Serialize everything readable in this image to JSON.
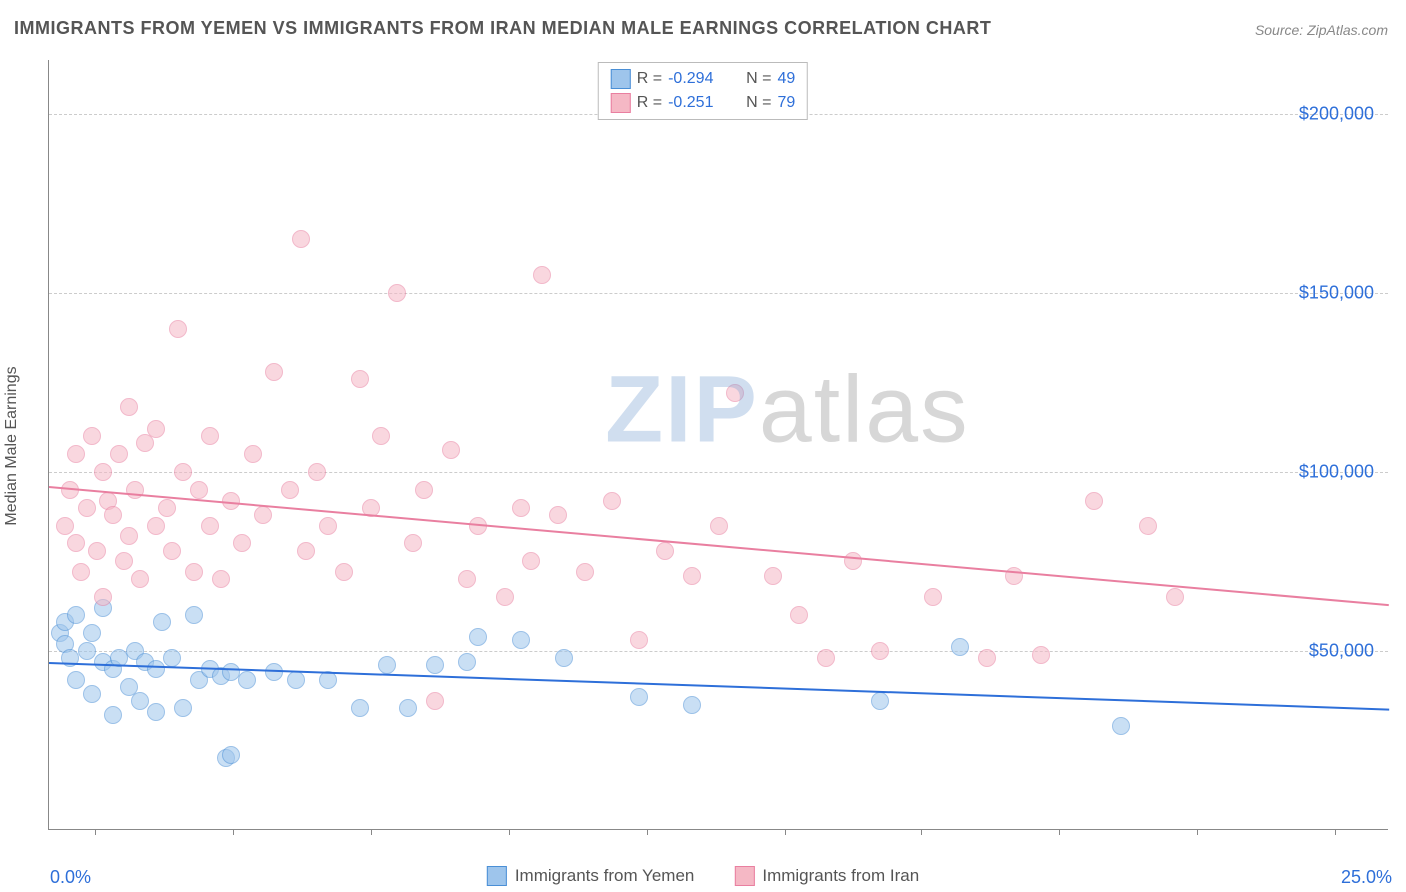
{
  "title": "IMMIGRANTS FROM YEMEN VS IMMIGRANTS FROM IRAN MEDIAN MALE EARNINGS CORRELATION CHART",
  "source": "Source: ZipAtlas.com",
  "ylabel": "Median Male Earnings",
  "watermark_zip": "ZIP",
  "watermark_atlas": "atlas",
  "chart": {
    "type": "scatter",
    "background_color": "#ffffff",
    "grid_color": "#cccccc",
    "axis_color": "#888888",
    "text_color": "#555555",
    "value_color": "#2e6fd9",
    "title_fontsize": 18,
    "label_fontsize": 16,
    "tick_fontsize": 18,
    "xlim": [
      0,
      25
    ],
    "ylim": [
      0,
      215000
    ],
    "xticks_pct": [
      3.4,
      13.7,
      24.0,
      34.3,
      44.6,
      54.9,
      65.1,
      75.4,
      85.7,
      96.0
    ],
    "y_gridlines": [
      50000,
      100000,
      150000,
      200000
    ],
    "ytick_labels": [
      "$50,000",
      "$100,000",
      "$150,000",
      "$200,000"
    ],
    "xaxis_min_label": "0.0%",
    "xaxis_max_label": "25.0%",
    "marker_radius": 9,
    "marker_opacity": 0.55,
    "series": [
      {
        "name": "Immigrants from Yemen",
        "marker_fill": "#9ec5ec",
        "marker_stroke": "#4a8fd6",
        "trend_color": "#2e6fd9",
        "trend_width": 2,
        "r": "-0.294",
        "n": "49",
        "trend": {
          "x1": 0,
          "y1": 47000,
          "x2": 25,
          "y2": 34000
        },
        "points": [
          [
            0.2,
            55000
          ],
          [
            0.3,
            52000
          ],
          [
            0.3,
            58000
          ],
          [
            0.4,
            48000
          ],
          [
            0.5,
            60000
          ],
          [
            0.5,
            42000
          ],
          [
            0.7,
            50000
          ],
          [
            0.8,
            55000
          ],
          [
            0.8,
            38000
          ],
          [
            1.0,
            62000
          ],
          [
            1.0,
            47000
          ],
          [
            1.2,
            45000
          ],
          [
            1.2,
            32000
          ],
          [
            1.3,
            48000
          ],
          [
            1.5,
            40000
          ],
          [
            1.6,
            50000
          ],
          [
            1.7,
            36000
          ],
          [
            1.8,
            47000
          ],
          [
            2.0,
            33000
          ],
          [
            2.0,
            45000
          ],
          [
            2.1,
            58000
          ],
          [
            2.3,
            48000
          ],
          [
            2.5,
            34000
          ],
          [
            2.7,
            60000
          ],
          [
            2.8,
            42000
          ],
          [
            3.0,
            45000
          ],
          [
            3.2,
            43000
          ],
          [
            3.3,
            20000
          ],
          [
            3.4,
            21000
          ],
          [
            3.4,
            44000
          ],
          [
            3.7,
            42000
          ],
          [
            4.2,
            44000
          ],
          [
            4.6,
            42000
          ],
          [
            5.2,
            42000
          ],
          [
            5.8,
            34000
          ],
          [
            6.3,
            46000
          ],
          [
            6.7,
            34000
          ],
          [
            7.2,
            46000
          ],
          [
            7.8,
            47000
          ],
          [
            8.0,
            54000
          ],
          [
            8.8,
            53000
          ],
          [
            9.6,
            48000
          ],
          [
            11.0,
            37000
          ],
          [
            12.0,
            35000
          ],
          [
            15.5,
            36000
          ],
          [
            17.0,
            51000
          ],
          [
            20.0,
            29000
          ]
        ]
      },
      {
        "name": "Immigrants from Iran",
        "marker_fill": "#f5b8c5",
        "marker_stroke": "#e97fa0",
        "trend_color": "#e97fa0",
        "trend_width": 2,
        "r": "-0.251",
        "n": "79",
        "trend": {
          "x1": 0,
          "y1": 96000,
          "x2": 25,
          "y2": 63000
        },
        "points": [
          [
            0.3,
            85000
          ],
          [
            0.4,
            95000
          ],
          [
            0.5,
            80000
          ],
          [
            0.5,
            105000
          ],
          [
            0.6,
            72000
          ],
          [
            0.7,
            90000
          ],
          [
            0.8,
            110000
          ],
          [
            0.9,
            78000
          ],
          [
            1.0,
            100000
          ],
          [
            1.0,
            65000
          ],
          [
            1.1,
            92000
          ],
          [
            1.2,
            88000
          ],
          [
            1.3,
            105000
          ],
          [
            1.4,
            75000
          ],
          [
            1.5,
            118000
          ],
          [
            1.5,
            82000
          ],
          [
            1.6,
            95000
          ],
          [
            1.7,
            70000
          ],
          [
            1.8,
            108000
          ],
          [
            2.0,
            85000
          ],
          [
            2.0,
            112000
          ],
          [
            2.2,
            90000
          ],
          [
            2.3,
            78000
          ],
          [
            2.4,
            140000
          ],
          [
            2.5,
            100000
          ],
          [
            2.7,
            72000
          ],
          [
            2.8,
            95000
          ],
          [
            3.0,
            85000
          ],
          [
            3.0,
            110000
          ],
          [
            3.2,
            70000
          ],
          [
            3.4,
            92000
          ],
          [
            3.6,
            80000
          ],
          [
            3.8,
            105000
          ],
          [
            4.0,
            88000
          ],
          [
            4.2,
            128000
          ],
          [
            4.5,
            95000
          ],
          [
            4.7,
            165000
          ],
          [
            4.8,
            78000
          ],
          [
            5.0,
            100000
          ],
          [
            5.2,
            85000
          ],
          [
            5.5,
            72000
          ],
          [
            5.8,
            126000
          ],
          [
            6.0,
            90000
          ],
          [
            6.2,
            110000
          ],
          [
            6.5,
            150000
          ],
          [
            6.8,
            80000
          ],
          [
            7.0,
            95000
          ],
          [
            7.2,
            36000
          ],
          [
            7.5,
            106000
          ],
          [
            7.8,
            70000
          ],
          [
            8.0,
            85000
          ],
          [
            8.5,
            65000
          ],
          [
            8.8,
            90000
          ],
          [
            9.0,
            75000
          ],
          [
            9.2,
            155000
          ],
          [
            9.5,
            88000
          ],
          [
            10.0,
            72000
          ],
          [
            10.5,
            92000
          ],
          [
            11.0,
            53000
          ],
          [
            11.5,
            78000
          ],
          [
            12.0,
            71000
          ],
          [
            12.5,
            85000
          ],
          [
            12.8,
            122000
          ],
          [
            13.5,
            71000
          ],
          [
            14.0,
            60000
          ],
          [
            14.5,
            48000
          ],
          [
            15.0,
            75000
          ],
          [
            15.5,
            50000
          ],
          [
            16.5,
            65000
          ],
          [
            17.5,
            48000
          ],
          [
            18.0,
            71000
          ],
          [
            18.5,
            49000
          ],
          [
            19.5,
            92000
          ],
          [
            20.5,
            85000
          ],
          [
            21.0,
            65000
          ]
        ]
      }
    ]
  },
  "legend_corr": {
    "r_label": "R =",
    "n_label": "N ="
  }
}
